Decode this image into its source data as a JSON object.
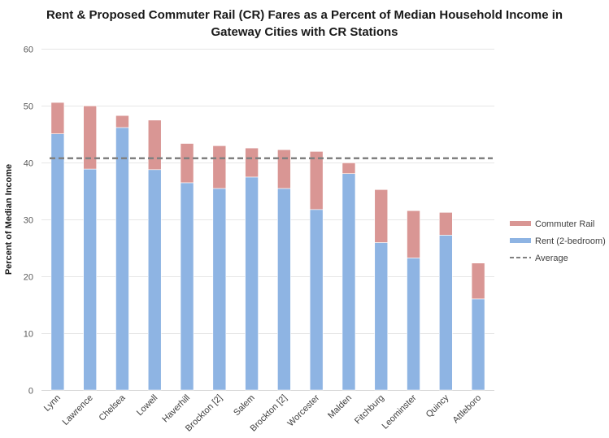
{
  "chart_data": {
    "type": "bar",
    "stacked": true,
    "title": "Rent & Proposed Commuter Rail (CR) Fares as a Percent of Median Household Income in Gateway Cities with CR Stations",
    "title_lines": [
      "Rent & Proposed Commuter Rail (CR) Fares as a Percent of Median Household Income in",
      "Gateway Cities with CR Stations"
    ],
    "xlabel": "",
    "ylabel": "Percent of Median Income",
    "ylim": [
      0,
      60
    ],
    "yticks": [
      0,
      10,
      20,
      30,
      40,
      50,
      60
    ],
    "grid": true,
    "legend_position": "right",
    "categories": [
      "Lynn",
      "Lawrence",
      "Chelsea",
      "Lowell",
      "Haverhill",
      "Brockton [2]",
      "Salem",
      "Brockton [2]",
      "Worcester",
      "Malden",
      "Fitchburg",
      "Leominster",
      "Quincy",
      "Attleboro"
    ],
    "series": [
      {
        "name": "Rent (2-bedroom)",
        "color": "#8eb4e3",
        "values": [
          45.0,
          38.8,
          46.1,
          38.7,
          36.4,
          35.4,
          37.4,
          35.4,
          31.7,
          38.0,
          25.9,
          23.2,
          27.2,
          16.0
        ]
      },
      {
        "name": "Commuter Rail",
        "color": "#d99694",
        "values": [
          5.5,
          11.1,
          2.1,
          8.7,
          6.9,
          7.5,
          5.1,
          6.8,
          10.2,
          1.9,
          9.3,
          8.3,
          4.0,
          6.3
        ]
      }
    ],
    "reference_lines": [
      {
        "name": "Average",
        "value": 40.7,
        "color": "#808080",
        "style": "dashed"
      }
    ],
    "legend": [
      {
        "label": "Commuter Rail",
        "color": "#d99694",
        "kind": "bar"
      },
      {
        "label": "Rent (2-bedroom)",
        "color": "#8eb4e3",
        "kind": "bar"
      },
      {
        "label": "Average",
        "color": "#808080",
        "kind": "dashed-line"
      }
    ]
  }
}
